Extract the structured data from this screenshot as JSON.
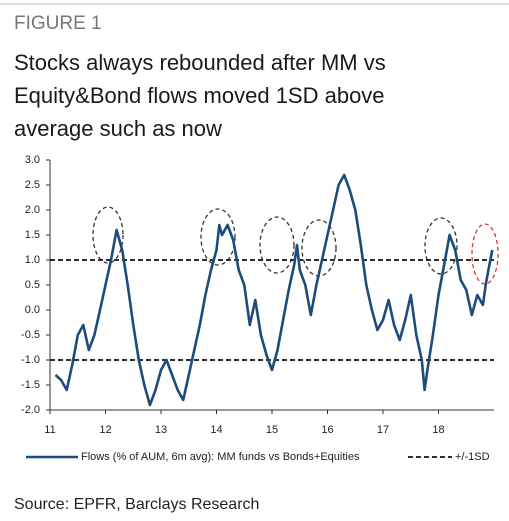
{
  "figure_label": "FIGURE 1",
  "title_lines": [
    "Stocks always rebounded after MM vs",
    "Equity&Bond flows moved 1SD above",
    "average such as now"
  ],
  "source": "Source: EPFR, Barclays Research",
  "chart_data": {
    "type": "line",
    "xlim": [
      11,
      19
    ],
    "xticks": [
      11,
      12,
      13,
      14,
      15,
      16,
      17,
      18
    ],
    "ylim": [
      -2,
      3
    ],
    "yticks": [
      {
        "value": 3,
        "label": "3.0"
      },
      2.5,
      {
        "value": 2,
        "label": "2.0"
      },
      1.5,
      {
        "value": 1,
        "label": "1.0"
      },
      0.5,
      {
        "value": 0,
        "label": "0.0"
      },
      -0.5,
      {
        "value": -1,
        "label": "-1.0"
      },
      -1.5,
      {
        "value": -2,
        "label": "-2.0"
      }
    ],
    "grid": false,
    "x": [
      11.1,
      11.2,
      11.3,
      11.4,
      11.5,
      11.6,
      11.7,
      11.8,
      11.9,
      12.0,
      12.1,
      12.2,
      12.3,
      12.4,
      12.5,
      12.6,
      12.7,
      12.8,
      12.9,
      13.0,
      13.1,
      13.2,
      13.3,
      13.4,
      13.5,
      13.6,
      13.7,
      13.8,
      13.9,
      14.0,
      14.05,
      14.1,
      14.2,
      14.3,
      14.4,
      14.5,
      14.6,
      14.7,
      14.8,
      14.9,
      15.0,
      15.1,
      15.2,
      15.3,
      15.4,
      15.45,
      15.5,
      15.6,
      15.7,
      15.8,
      15.9,
      16.0,
      16.1,
      16.2,
      16.3,
      16.4,
      16.5,
      16.6,
      16.7,
      16.8,
      16.9,
      17.0,
      17.1,
      17.2,
      17.3,
      17.4,
      17.5,
      17.6,
      17.7,
      17.75,
      17.8,
      17.9,
      18.0,
      18.1,
      18.2,
      18.3,
      18.4,
      18.5,
      18.6,
      18.7,
      18.8,
      18.85,
      18.9,
      18.97
    ],
    "series": [
      {
        "name": "Flows (% of AUM, 6m avg): MM funds vs Bonds+Equities",
        "color": "#1c4b7c",
        "values": [
          -1.3,
          -1.4,
          -1.6,
          -1.1,
          -0.5,
          -0.3,
          -0.8,
          -0.5,
          0.0,
          0.5,
          1.0,
          1.6,
          1.2,
          0.5,
          -0.3,
          -1.0,
          -1.5,
          -1.9,
          -1.6,
          -1.2,
          -1.0,
          -1.3,
          -1.6,
          -1.8,
          -1.3,
          -0.8,
          -0.3,
          0.3,
          0.8,
          1.2,
          1.7,
          1.5,
          1.7,
          1.4,
          0.8,
          0.5,
          -0.3,
          0.2,
          -0.5,
          -0.9,
          -1.2,
          -0.8,
          -0.2,
          0.4,
          0.9,
          1.3,
          0.8,
          0.5,
          -0.1,
          0.5,
          1.0,
          1.5,
          2.0,
          2.5,
          2.7,
          2.4,
          2.0,
          1.3,
          0.5,
          0.0,
          -0.4,
          -0.2,
          0.2,
          -0.3,
          -0.6,
          -0.2,
          0.3,
          -0.5,
          -1.0,
          -1.6,
          -1.2,
          -0.5,
          0.3,
          0.9,
          1.5,
          1.2,
          0.6,
          0.4,
          -0.1,
          0.3,
          0.1,
          0.5,
          0.8,
          1.2
        ]
      }
    ],
    "reference_lines": {
      "name": "+/-1SD",
      "color": "#111",
      "values": [
        1,
        -1
      ]
    }
  }
}
